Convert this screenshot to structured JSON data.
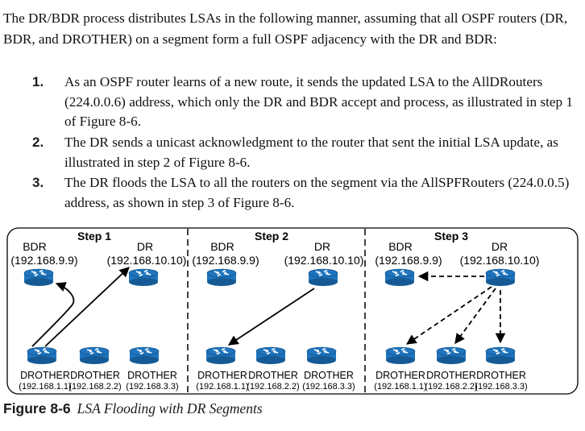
{
  "intro": "The DR/BDR process distributes LSAs in the following manner, assuming that all OSPF routers (DR, BDR, and DROTHER) on a segment form a full OSPF adjacency with the DR and BDR:",
  "steps": [
    {
      "num": "1.",
      "text": "As an OSPF router learns of a new route, it sends the updated LSA to the AllDRouters (224.0.0.6) address, which only the DR and BDR accept and process, as illustrated in step 1 of Figure 8-6."
    },
    {
      "num": "2.",
      "text": "The DR sends a unicast acknowledgment to the router that sent the initial LSA update, as illustrated in step 2 of Figure 8-6."
    },
    {
      "num": "3.",
      "text": "The DR floods the LSA to all the routers on the segment via the AllSPFRouters (224.0.0.5) address, as shown in step 3 of Figure 8-6."
    }
  ],
  "figure": {
    "panels": [
      {
        "title": "Step 1"
      },
      {
        "title": "Step 2"
      },
      {
        "title": "Step 3"
      }
    ],
    "role_bdr": "BDR",
    "role_dr": "DR",
    "role_drother": "DROTHER",
    "ip_bdr": "(192.168.9.9)",
    "ip_dr": "(192.168.10.10)",
    "ip_r1": "(192.168.1.1)",
    "ip_r2": "(192.168.2.2)",
    "ip_r3": "(192.168.3.3)",
    "router_color": "#1f74bd",
    "router_dark": "#155a95"
  },
  "caption": {
    "label": "Figure 8-6",
    "text": "LSA Flooding with DR Segments"
  }
}
